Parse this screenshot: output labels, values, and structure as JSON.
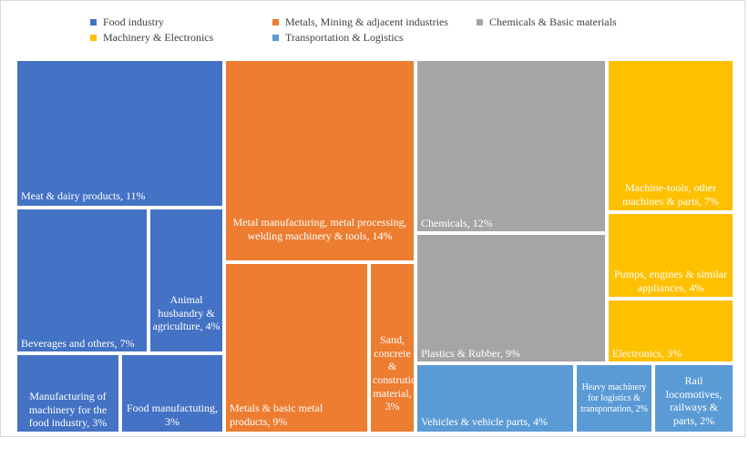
{
  "chart_data": {
    "type": "treemap",
    "legend_position": "top",
    "categories": [
      {
        "name": "Food industry",
        "color": "#4472c4"
      },
      {
        "name": "Metals, Mining & adjacent industries",
        "color": "#ed7d31"
      },
      {
        "name": "Chemicals & Basic materials",
        "color": "#a5a5a5"
      },
      {
        "name": "Machinery & Electronics",
        "color": "#ffc000"
      },
      {
        "name": "Transportation & Logistics",
        "color": "#5b9bd5"
      }
    ],
    "items": [
      {
        "category": "Food industry",
        "label": "Meat & dairy products, 11%",
        "value": 11
      },
      {
        "category": "Food industry",
        "label": "Beverages and others, 7%",
        "value": 7
      },
      {
        "category": "Food industry",
        "label": "Animal husbandry & agriculture, 4%",
        "value": 4
      },
      {
        "category": "Food industry",
        "label": "Manufacturing of machinery for the food industry, 3%",
        "value": 3
      },
      {
        "category": "Food industry",
        "label": "Food manufactuting, 3%",
        "value": 3
      },
      {
        "category": "Metals, Mining & adjacent industries",
        "label": "Metal manufacturing, metal processing, welding machinery & tools, 14%",
        "value": 14
      },
      {
        "category": "Metals, Mining & adjacent industries",
        "label": "Metals & basic metal products, 9%",
        "value": 9
      },
      {
        "category": "Metals, Mining & adjacent industries",
        "label": "Sand, concrete & constrution material, 3%",
        "value": 3
      },
      {
        "category": "Chemicals & Basic materials",
        "label": "Chemicals, 12%",
        "value": 12
      },
      {
        "category": "Chemicals & Basic materials",
        "label": "Plastics & Rubber, 9%",
        "value": 9
      },
      {
        "category": "Machinery & Electronics",
        "label": "Machine-tools, other machines & parts, 7%",
        "value": 7
      },
      {
        "category": "Machinery & Electronics",
        "label": "Pumps, engines & similar appliances, 4%",
        "value": 4
      },
      {
        "category": "Machinery & Electronics",
        "label": "Electronics, 3%",
        "value": 3
      },
      {
        "category": "Transportation & Logistics",
        "label": "Vehicles & vehicle parts, 4%",
        "value": 4
      },
      {
        "category": "Transportation & Logistics",
        "label": "Heavy machinery for logistics & transportation, 2%",
        "value": 2
      },
      {
        "category": "Transportation & Logistics",
        "label": "Rail locomotives, railways & parts, 2%",
        "value": 2
      }
    ]
  }
}
